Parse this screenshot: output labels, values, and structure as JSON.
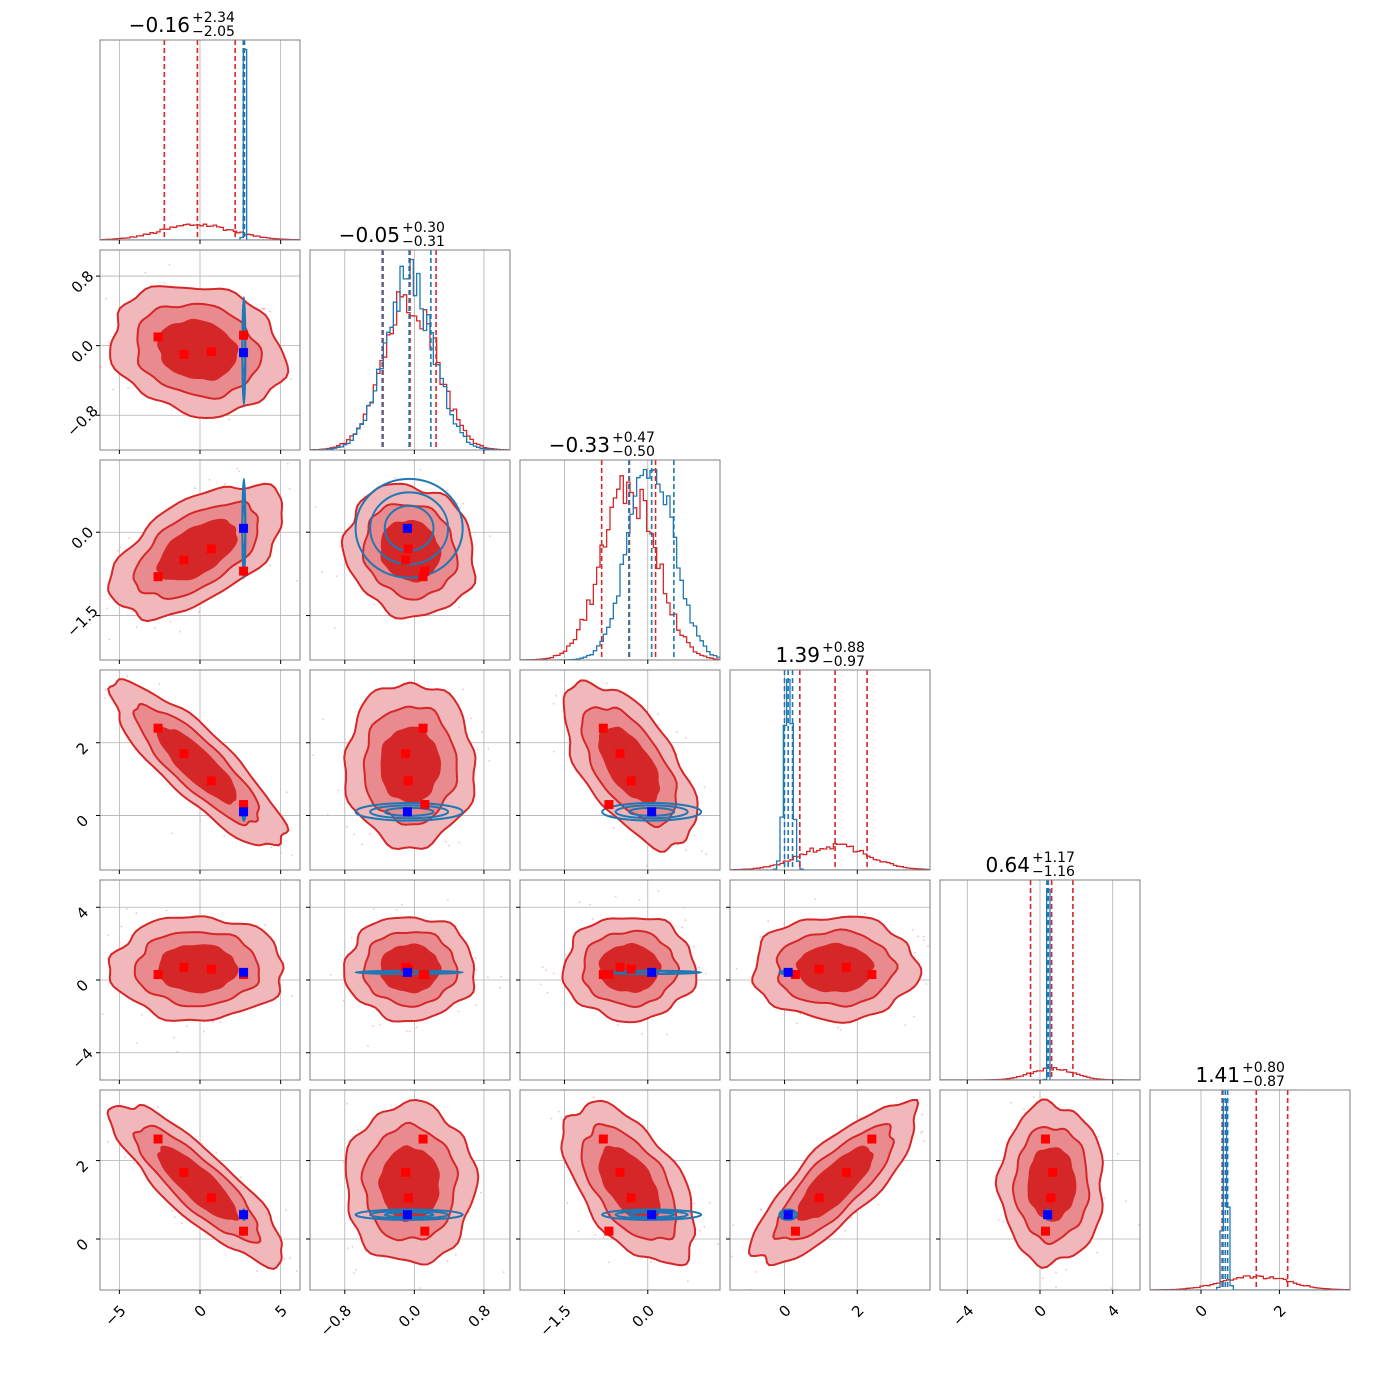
{
  "chart_data": {
    "type": "corner",
    "n_params": 6,
    "colors": {
      "red": "#d62728",
      "blue": "#1f77b4",
      "marker_red": "#ff0000",
      "marker_blue": "#0000ff",
      "grid": "#b0b0b0",
      "spine": "#808080"
    },
    "grid": true,
    "params": [
      {
        "range": [
          -6.2,
          6.2
        ],
        "ticks": [
          -5,
          0,
          5
        ],
        "tick_labels": [
          "−5",
          "0",
          "5"
        ],
        "title_main": "−0.16",
        "title_plus": "+2.34",
        "title_minus": "−2.05",
        "red_quantiles": [
          -2.21,
          -0.16,
          2.18
        ],
        "blue_quantiles": [
          2.68,
          2.72,
          2.76
        ],
        "truth": 2.7
      },
      {
        "range": [
          -1.2,
          1.1
        ],
        "ticks": [
          -0.8,
          0.0,
          0.8
        ],
        "tick_labels": [
          "−0.8",
          "0.0",
          "0.8"
        ],
        "title_main": "−0.05",
        "title_plus": "+0.30",
        "title_minus": "−0.31",
        "red_quantiles": [
          -0.36,
          -0.05,
          0.25
        ],
        "blue_quantiles": [
          -0.37,
          -0.06,
          0.19
        ],
        "truth": -0.08
      },
      {
        "range": [
          -2.3,
          1.3
        ],
        "ticks": [
          -1.5,
          0.0
        ],
        "tick_labels": [
          "−1.5",
          "0.0"
        ],
        "title_main": "−0.33",
        "title_plus": "+0.47",
        "title_minus": "−0.50",
        "red_quantiles": [
          -0.83,
          -0.33,
          0.14
        ],
        "blue_quantiles": [
          -0.34,
          0.07,
          0.47
        ],
        "truth": 0.07
      },
      {
        "range": [
          -1.5,
          4.0
        ],
        "ticks": [
          0,
          2
        ],
        "tick_labels": [
          "0",
          "2"
        ],
        "title_main": "1.39",
        "title_plus": "+0.88",
        "title_minus": "−0.97",
        "red_quantiles": [
          0.42,
          1.39,
          2.27
        ],
        "blue_quantiles": [
          0.0,
          0.1,
          0.22
        ],
        "truth": 0.1
      },
      {
        "range": [
          -5.5,
          5.5
        ],
        "ticks": [
          -4,
          0,
          4
        ],
        "tick_labels": [
          "−4",
          "0",
          "4"
        ],
        "title_main": "0.64",
        "title_plus": "+1.17",
        "title_minus": "−1.16",
        "red_quantiles": [
          -0.52,
          0.64,
          1.81
        ],
        "blue_quantiles": [
          0.38,
          0.42,
          0.46
        ],
        "truth": 0.42
      },
      {
        "range": [
          -1.3,
          3.8
        ],
        "ticks": [
          0,
          2
        ],
        "tick_labels": [
          "0",
          "2"
        ],
        "title_main": "1.41",
        "title_plus": "+0.80",
        "title_minus": "−0.87",
        "red_quantiles": [
          0.54,
          1.41,
          2.21
        ],
        "blue_quantiles": [
          0.56,
          0.62,
          0.68
        ],
        "truth": 0.62
      }
    ],
    "red_markers": [
      [
        -2.6,
        0.1,
        -0.8,
        2.4,
        0.3,
        2.55
      ],
      [
        -1.0,
        -0.1,
        -0.5,
        1.7,
        0.7,
        1.7
      ],
      [
        0.7,
        -0.07,
        -0.3,
        0.95,
        0.6,
        1.05
      ],
      [
        2.7,
        0.12,
        -0.7,
        0.3,
        0.3,
        0.2
      ]
    ],
    "blue_marker": [
      2.7,
      -0.08,
      0.07,
      0.1,
      0.42,
      0.62
    ],
    "red_hist_peak_note": "red marginals broad, blue marginals narrow"
  }
}
